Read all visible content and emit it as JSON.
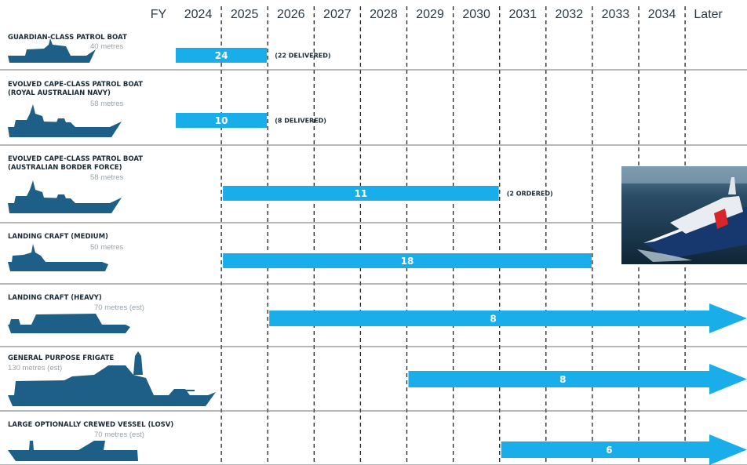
{
  "chart_data": {
    "type": "bar",
    "axis_prefix": "FY",
    "categories": [
      "2024",
      "2025",
      "2026",
      "2027",
      "2028",
      "2029",
      "2030",
      "2031",
      "2032",
      "2033",
      "2034",
      "Later"
    ],
    "bar_color": "#19aee9",
    "silhouette_color": "#1d5f86",
    "rows": [
      {
        "name_lines": [
          "GUARDIAN-CLASS PATROL BOAT"
        ],
        "length": "40 metres",
        "label": "24",
        "start": "2024",
        "end": "2025",
        "arrow": false,
        "note": "(22 DELIVERED)",
        "silhouette": "patrol-small"
      },
      {
        "name_lines": [
          "EVOLVED CAPE-CLASS PATROL BOAT",
          "(ROYAL AUSTRALIAN NAVY)"
        ],
        "length": "58 metres",
        "label": "10",
        "start": "2024",
        "end": "2025",
        "arrow": false,
        "note": "(8 DELIVERED)",
        "silhouette": "patrol-cape"
      },
      {
        "name_lines": [
          "EVOLVED CAPE-CLASS PATROL BOAT",
          "(AUSTRALIAN BORDER FORCE)"
        ],
        "length": "58 metres",
        "label": "11",
        "start": "2025",
        "end": "2030",
        "arrow": false,
        "note": "(2 ORDERED)",
        "silhouette": "patrol-cape"
      },
      {
        "name_lines": [
          "LANDING CRAFT (MEDIUM)"
        ],
        "length": "50 metres",
        "label": "18",
        "start": "2025",
        "end": "2032",
        "arrow": false,
        "note": "",
        "silhouette": "landing-medium"
      },
      {
        "name_lines": [
          "LANDING CRAFT (HEAVY)"
        ],
        "length": "70 metres (est)",
        "label": "8",
        "start": "2026",
        "end": "Later",
        "arrow": true,
        "note": "",
        "silhouette": "landing-heavy"
      },
      {
        "name_lines": [
          "GENERAL PURPOSE FRIGATE"
        ],
        "length": "130 metres (est)",
        "label": "8",
        "start": "2029",
        "end": "Later",
        "arrow": true,
        "note": "",
        "silhouette": "frigate"
      },
      {
        "name_lines": [
          "LARGE OPTIONALLY CREWED VESSEL (LOSV)"
        ],
        "length": "70 metres (est)",
        "label": "6",
        "start": "2031",
        "end": "Later",
        "arrow": true,
        "note": "",
        "silhouette": "losv"
      }
    ],
    "photo": {
      "icon": "ship-photo"
    }
  }
}
